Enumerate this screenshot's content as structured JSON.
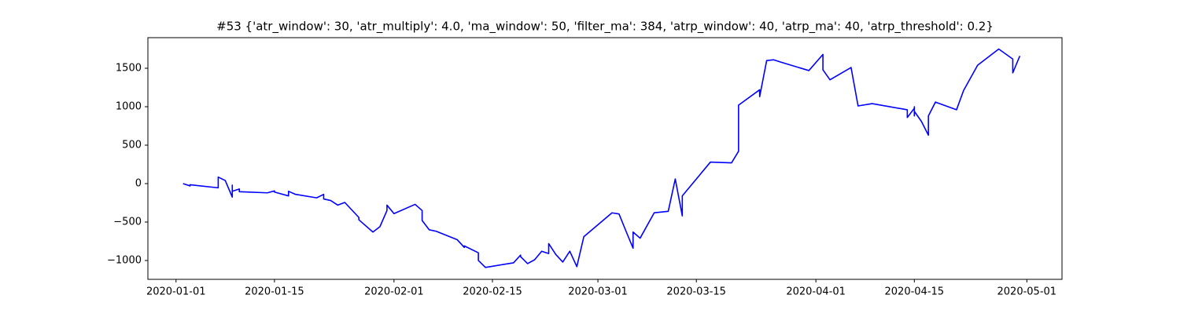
{
  "chart_data": {
    "type": "line",
    "title": "#53 {'atr_window': 30, 'atr_multiply': 4.0, 'ma_window': 50, 'filter_ma': 384, 'atrp_window': 40, 'atrp_ma': 40, 'atrp_threshold': 0.2}",
    "x": [
      "2020-01-02",
      "2020-01-03",
      "2020-01-03",
      "2020-01-07",
      "2020-01-07",
      "2020-01-08",
      "2020-01-09",
      "2020-01-09",
      "2020-01-09",
      "2020-01-10",
      "2020-01-10",
      "2020-01-14",
      "2020-01-15",
      "2020-01-15",
      "2020-01-17",
      "2020-01-17",
      "2020-01-18",
      "2020-01-21",
      "2020-01-22",
      "2020-01-22",
      "2020-01-23",
      "2020-01-24",
      "2020-01-25",
      "2020-01-27",
      "2020-01-27",
      "2020-01-29",
      "2020-01-30",
      "2020-01-31",
      "2020-01-31",
      "2020-02-01",
      "2020-02-04",
      "2020-02-05",
      "2020-02-05",
      "2020-02-06",
      "2020-02-07",
      "2020-02-10",
      "2020-02-11",
      "2020-02-11",
      "2020-02-13",
      "2020-02-13",
      "2020-02-14",
      "2020-02-18",
      "2020-02-19",
      "2020-02-19",
      "2020-02-20",
      "2020-02-21",
      "2020-02-22",
      "2020-02-23",
      "2020-02-23",
      "2020-02-24",
      "2020-02-25",
      "2020-02-26",
      "2020-02-27",
      "2020-02-28",
      "2020-03-03",
      "2020-03-04",
      "2020-03-05",
      "2020-03-06",
      "2020-03-06",
      "2020-03-07",
      "2020-03-09",
      "2020-03-11",
      "2020-03-12",
      "2020-03-13",
      "2020-03-13",
      "2020-03-17",
      "2020-03-20",
      "2020-03-21",
      "2020-03-21",
      "2020-03-24",
      "2020-03-24",
      "2020-03-25",
      "2020-03-26",
      "2020-03-27",
      "2020-03-31",
      "2020-04-02",
      "2020-04-02",
      "2020-04-03",
      "2020-04-06",
      "2020-04-07",
      "2020-04-09",
      "2020-04-14",
      "2020-04-14",
      "2020-04-15",
      "2020-04-15",
      "2020-04-15",
      "2020-04-15",
      "2020-04-16",
      "2020-04-17",
      "2020-04-17",
      "2020-04-18",
      "2020-04-21",
      "2020-04-22",
      "2020-04-24",
      "2020-04-27",
      "2020-04-29",
      "2020-04-29",
      "2020-04-30"
    ],
    "series": [
      {
        "color": "#0000ff",
        "values": [
          0,
          -30,
          -15,
          -55,
          85,
          40,
          -175,
          -20,
          -100,
          -70,
          -105,
          -120,
          -95,
          -110,
          -160,
          -100,
          -140,
          -185,
          -140,
          -200,
          -220,
          -280,
          -245,
          -440,
          -470,
          -630,
          -560,
          -350,
          -280,
          -390,
          -270,
          -350,
          -480,
          -600,
          -620,
          -730,
          -830,
          -810,
          -900,
          -1000,
          -1090,
          -1030,
          -930,
          -950,
          -1040,
          -990,
          -880,
          -910,
          -780,
          -920,
          -1020,
          -880,
          -1080,
          -690,
          -380,
          -395,
          -620,
          -840,
          -630,
          -710,
          -380,
          -360,
          60,
          -420,
          -160,
          280,
          270,
          420,
          1020,
          1220,
          1130,
          1600,
          1610,
          1580,
          1470,
          1680,
          1480,
          1350,
          1510,
          1010,
          1040,
          960,
          860,
          980,
          880,
          1000,
          940,
          810,
          630,
          880,
          1060,
          960,
          1210,
          1540,
          1750,
          1620,
          1440,
          1660
        ]
      }
    ],
    "xlim": [
      "2019-12-28",
      "2020-05-06"
    ],
    "xticks": [
      "2020-01-01",
      "2020-01-15",
      "2020-02-01",
      "2020-02-15",
      "2020-03-01",
      "2020-03-15",
      "2020-04-01",
      "2020-04-15",
      "2020-05-01"
    ],
    "ylim": [
      -1245,
      1898
    ],
    "yticks": [
      {
        "value": -1000,
        "label": "−1000"
      },
      {
        "value": -500,
        "label": "−500"
      },
      0,
      500,
      1000,
      1500
    ]
  }
}
